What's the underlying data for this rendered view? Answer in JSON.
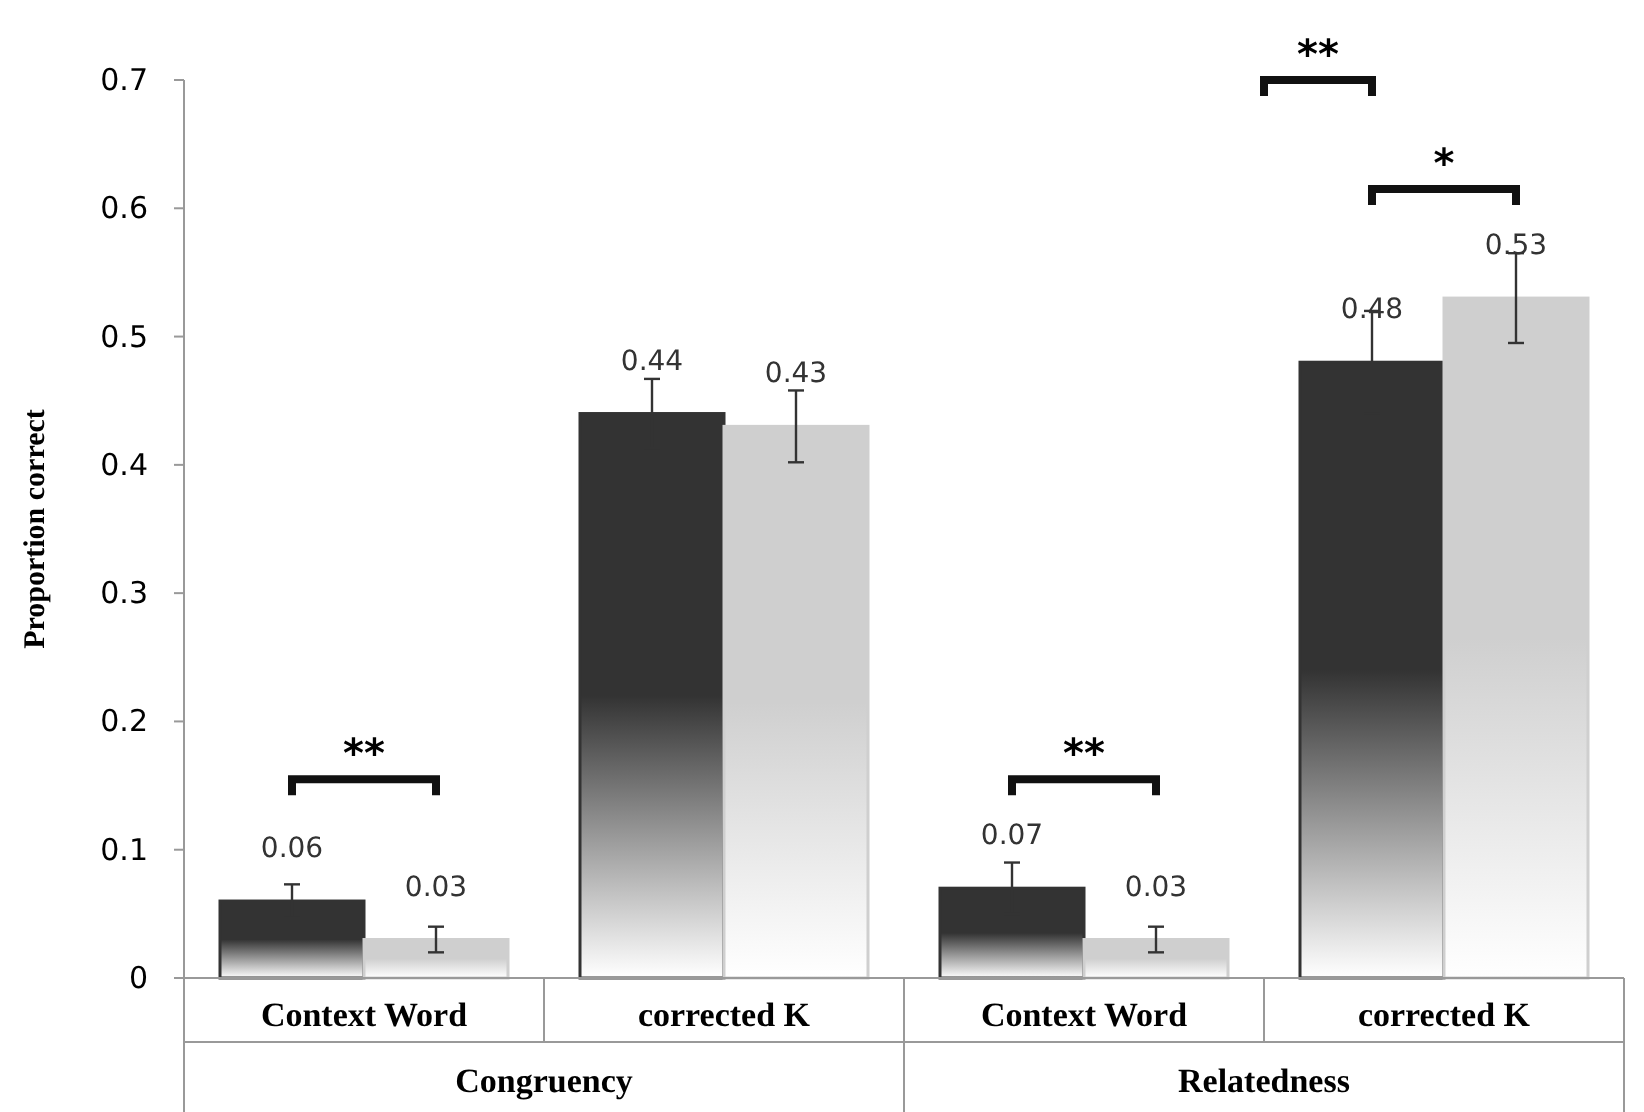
{
  "chart_data": {
    "type": "bar",
    "ylabel": "Proportion correct",
    "categories": [
      "Context Word",
      "corrected K",
      "Context Word",
      "corrected K"
    ],
    "series": [
      {
        "color": "#333333",
        "values": [
          0.06,
          0.44,
          0.07,
          0.48
        ],
        "errors": [
          0.013,
          0.027,
          0.02,
          0.04
        ]
      },
      {
        "color": "#cfcfcf",
        "values": [
          0.03,
          0.43,
          0.03,
          0.53
        ],
        "errors": [
          0.01,
          0.028,
          0.01,
          0.035
        ]
      }
    ],
    "ylim": [
      0,
      0.7
    ],
    "yticks": [
      0,
      0.1,
      0.2,
      0.3,
      0.4,
      0.5,
      0.6,
      0.7
    ],
    "grid": false,
    "data_labels": true,
    "annotations": [
      "**",
      "**",
      "*",
      "**",
      "Congruency",
      "Relatedness"
    ]
  }
}
